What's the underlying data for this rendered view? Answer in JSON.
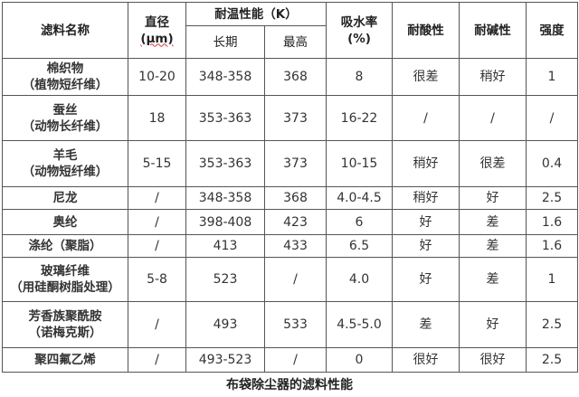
{
  "header": {
    "name": "滤料名称",
    "diameter": "直径",
    "diameter_unit": "(μm)",
    "temp": "耐温性能（K）",
    "temp_long": "长期",
    "temp_max": "最高",
    "water": "吸水率",
    "water_unit": "(%)",
    "acid": "耐酸性",
    "alkali": "耐碱性",
    "strength": "强度"
  },
  "rows": [
    {
      "name": "棉织物",
      "sub": "（植物短纤维）",
      "diameter": "10-20",
      "long": "348-358",
      "max": "368",
      "water": "8",
      "acid": "很差",
      "alkali": "稍好",
      "strength": "1"
    },
    {
      "name": "蚕丝",
      "sub": "（动物长纤维）",
      "diameter": "18",
      "long": "353-363",
      "max": "373",
      "water": "16-22",
      "acid": "/",
      "alkali": "/",
      "strength": "/"
    },
    {
      "name": "羊毛",
      "sub": "（动物短纤维）",
      "diameter": "5-15",
      "long": "353-363",
      "max": "373",
      "water": "10-15",
      "acid": "稍好",
      "alkali": "很差",
      "strength": "0.4"
    },
    {
      "name": "尼龙",
      "sub": "",
      "diameter": "/",
      "long": "348-358",
      "max": "368",
      "water": "4.0-4.5",
      "acid": "稍好",
      "alkali": "好",
      "strength": "2.5"
    },
    {
      "name": "奥纶",
      "sub": "",
      "diameter": "/",
      "long": "398-408",
      "max": "423",
      "water": "6",
      "acid": "好",
      "alkali": "差",
      "strength": "1.6"
    },
    {
      "name": "涤纶（聚脂）",
      "sub": "",
      "diameter": "/",
      "long": "413",
      "max": "433",
      "water": "6.5",
      "acid": "好",
      "alkali": "差",
      "strength": "1.6"
    },
    {
      "name": "玻璃纤维",
      "sub": "（用硅酮树脂处理）",
      "diameter": "5-8",
      "long": "523",
      "max": "/",
      "water": "4.0",
      "acid": "好",
      "alkali": "差",
      "strength": "1"
    },
    {
      "name": "芳香族聚酰胺",
      "sub": "（诺梅克斯）",
      "diameter": "/",
      "long": "493",
      "max": "533",
      "water": "4.5-5.0",
      "acid": "差",
      "alkali": "好",
      "strength": "2.5"
    },
    {
      "name": "聚四氟乙烯",
      "sub": "",
      "diameter": "/",
      "long": "493-523",
      "max": "/",
      "water": "0",
      "acid": "很好",
      "alkali": "很好",
      "strength": "2.5"
    }
  ],
  "caption": "布袋除尘器的滤料性能"
}
